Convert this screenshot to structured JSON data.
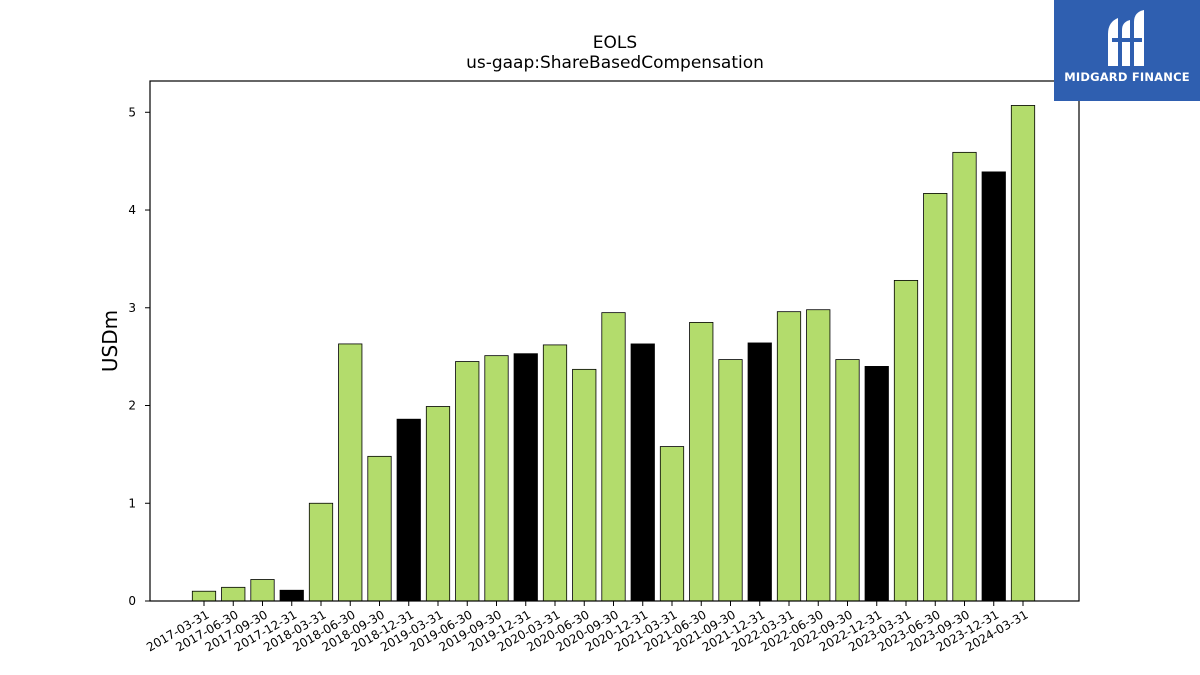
{
  "chart_data": {
    "type": "bar",
    "title": "EOLS",
    "subtitle": "us-gaap:ShareBasedCompensation",
    "ylabel": "USDm",
    "xlabel": "",
    "ylim": [
      0,
      5.32
    ],
    "yticks": [
      0,
      1,
      2,
      3,
      4,
      5
    ],
    "grid": false,
    "categories": [
      "2017-03-31",
      "2017-06-30",
      "2017-09-30",
      "2017-12-31",
      "2018-03-31",
      "2018-06-30",
      "2018-09-30",
      "2018-12-31",
      "2019-03-31",
      "2019-06-30",
      "2019-09-30",
      "2019-12-31",
      "2020-03-31",
      "2020-06-30",
      "2020-09-30",
      "2020-12-31",
      "2021-03-31",
      "2021-06-30",
      "2021-09-30",
      "2021-12-31",
      "2022-03-31",
      "2022-06-30",
      "2022-09-30",
      "2022-12-31",
      "2023-03-31",
      "2023-06-30",
      "2023-09-30",
      "2023-12-31",
      "2024-03-31"
    ],
    "values": [
      0.1,
      0.14,
      0.22,
      0.11,
      1.0,
      2.63,
      1.48,
      1.86,
      1.99,
      2.45,
      2.51,
      2.53,
      2.62,
      2.37,
      2.95,
      2.63,
      1.58,
      2.85,
      2.47,
      2.64,
      2.96,
      2.98,
      2.47,
      2.4,
      3.28,
      4.17,
      4.59,
      4.39,
      5.07
    ],
    "colors": {
      "quarter": "#b3dc6c",
      "year_end": "#000000",
      "edge": "#000000"
    },
    "year_end_quarter": "12-31"
  },
  "logo": {
    "text": "MIDGARD FINANCE",
    "background": "#2f5fb0"
  }
}
